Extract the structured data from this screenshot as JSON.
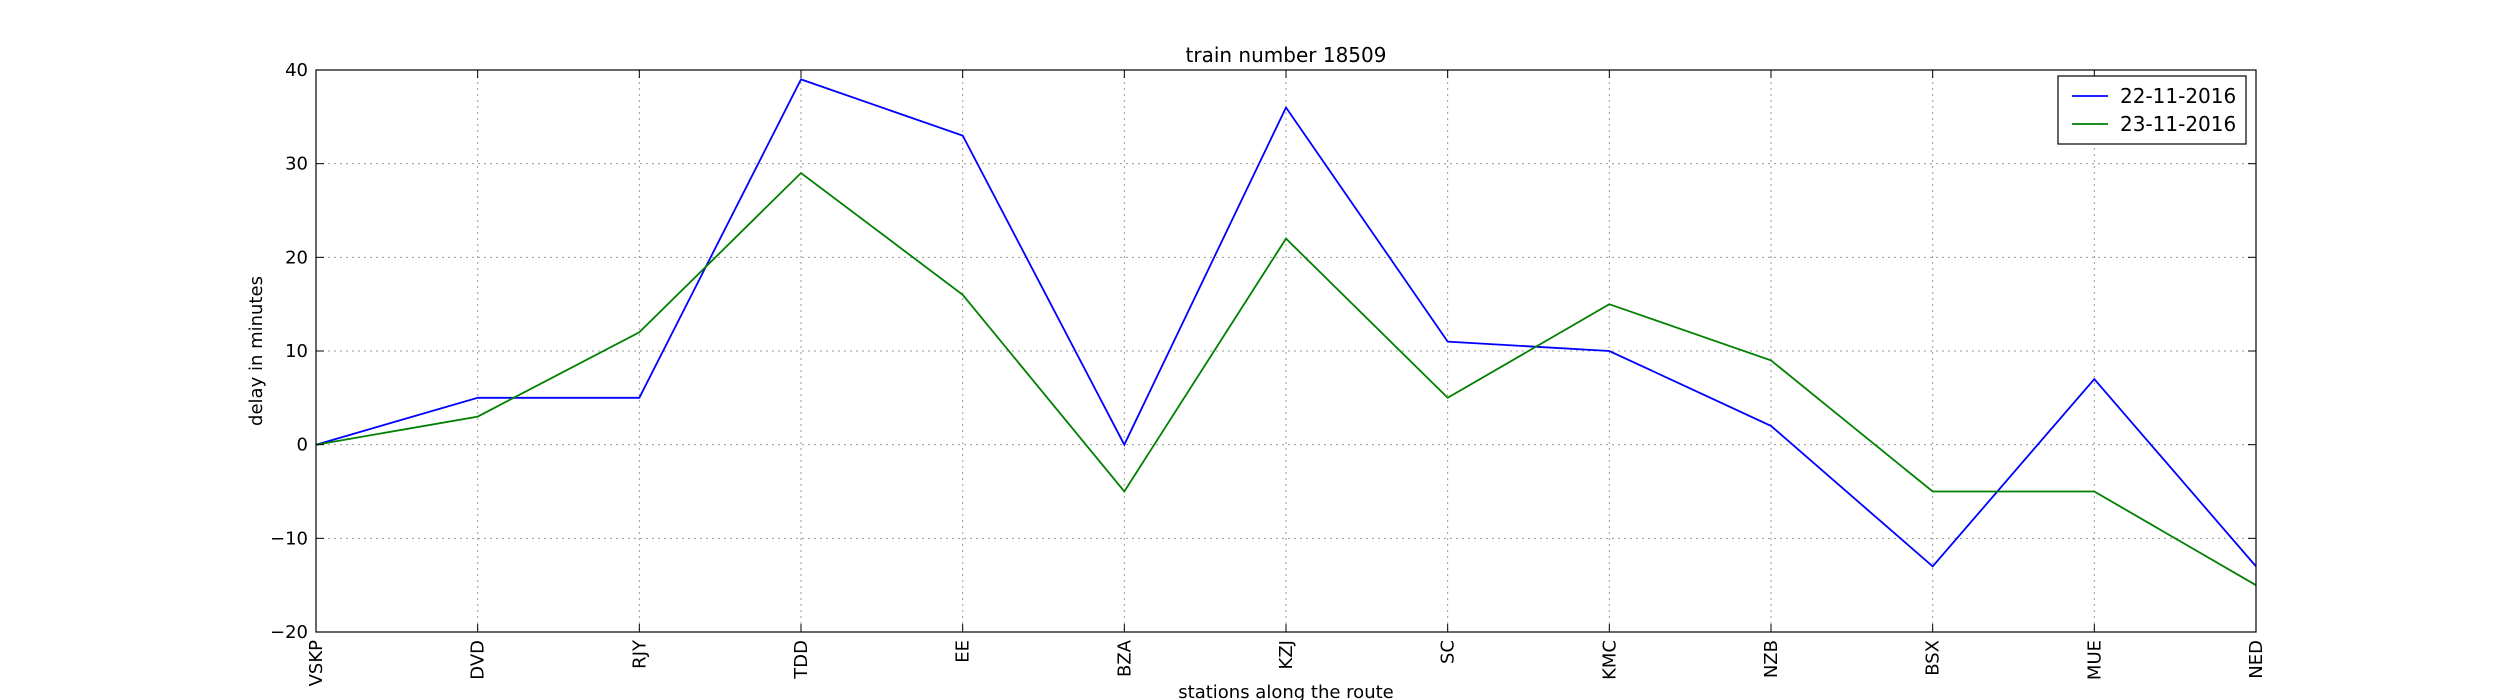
{
  "chart_data": {
    "type": "line",
    "title": "train number 18509",
    "xlabel": "stations along the route",
    "ylabel": "delay in minutes",
    "categories": [
      "VSKP",
      "DVD",
      "RJY",
      "TDD",
      "EE",
      "BZA",
      "KZJ",
      "SC",
      "KMC",
      "NZB",
      "BSX",
      "MUE",
      "NED"
    ],
    "ylim": [
      -20,
      40
    ],
    "yticks": [
      -20,
      -10,
      0,
      10,
      20,
      30,
      40
    ],
    "ytick_labels": [
      "−20",
      "−10",
      "0",
      "10",
      "20",
      "30",
      "40"
    ],
    "grid": true,
    "legend_position": "top-right",
    "series": [
      {
        "name": "22-11-2016",
        "color": "#0000ff",
        "values": [
          0,
          5,
          5,
          39,
          33,
          0,
          36,
          11,
          10,
          2,
          -13,
          7,
          -13
        ]
      },
      {
        "name": "23-11-2016",
        "color": "#008000",
        "values": [
          0,
          3,
          12,
          29,
          16,
          -5,
          22,
          5,
          15,
          9,
          -5,
          -5,
          -15
        ]
      }
    ]
  }
}
